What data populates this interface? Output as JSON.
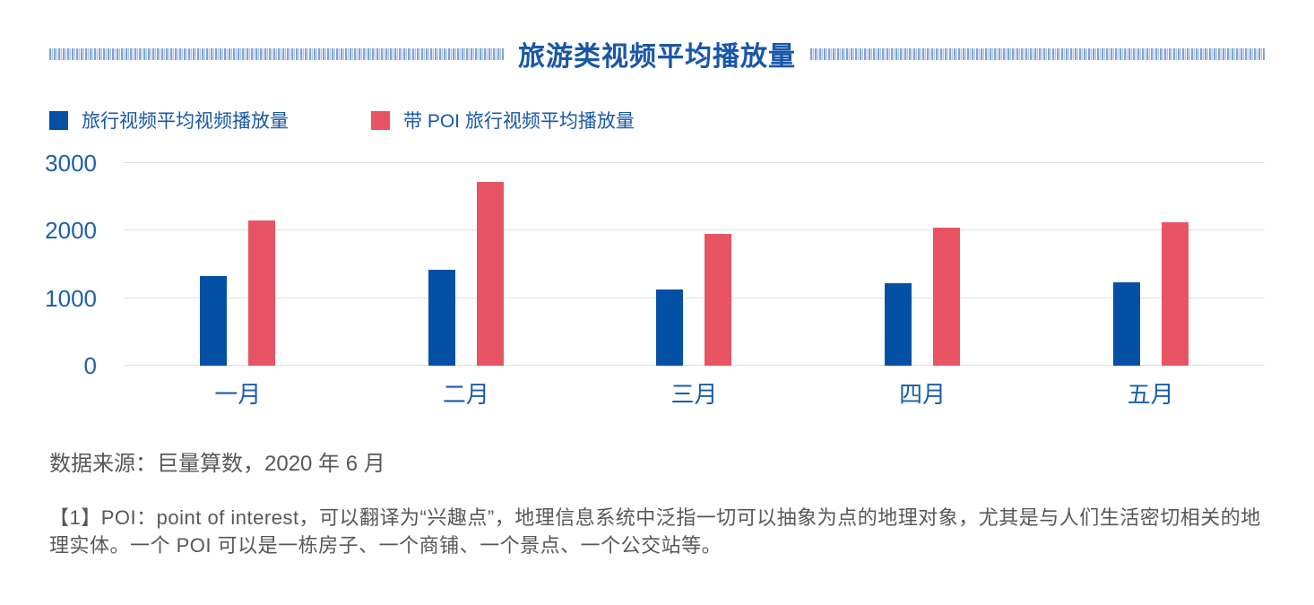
{
  "header": {
    "title": "旅游类视频平均播放量"
  },
  "legend": [
    {
      "label": "旅行视频平均视频播放量",
      "color": "#0450a4"
    },
    {
      "label": "带 POI 旅行视频平均播放量",
      "color": "#e85463"
    }
  ],
  "chart_data": {
    "type": "bar",
    "title": "旅游类视频平均播放量",
    "categories": [
      "一月",
      "二月",
      "三月",
      "四月",
      "五月"
    ],
    "series": [
      {
        "name": "旅行视频平均视频播放量",
        "color": "#0450a4",
        "values": [
          1330,
          1420,
          1130,
          1220,
          1230
        ]
      },
      {
        "name": "带 POI 旅行视频平均播放量",
        "color": "#e85463",
        "values": [
          2150,
          2720,
          1950,
          2050,
          2130
        ]
      }
    ],
    "xlabel": "",
    "ylabel": "",
    "ylim": [
      0,
      3000
    ],
    "yticks": [
      0,
      1000,
      2000,
      3000
    ],
    "grid": true,
    "legend_position": "top-left"
  },
  "footer": {
    "source": "数据来源：巨量算数，2020 年 6 月",
    "footnote": "【1】POI：point of interest，可以翻译为“兴趣点”，地理信息系统中泛指一切可以抽象为点的地理对象，尤其是与人们生活密切相关的地理实体。一个 POI 可以是一栋房子、一个商铺、一个景点、一个公交站等。"
  },
  "colors": {
    "title_blue": "#1a57a8",
    "bar_blue": "#0450a4",
    "bar_red": "#e85463",
    "gridline": "#e0e0e0",
    "gray_text": "#595757",
    "stripe_blue": "#7fa3d4"
  }
}
